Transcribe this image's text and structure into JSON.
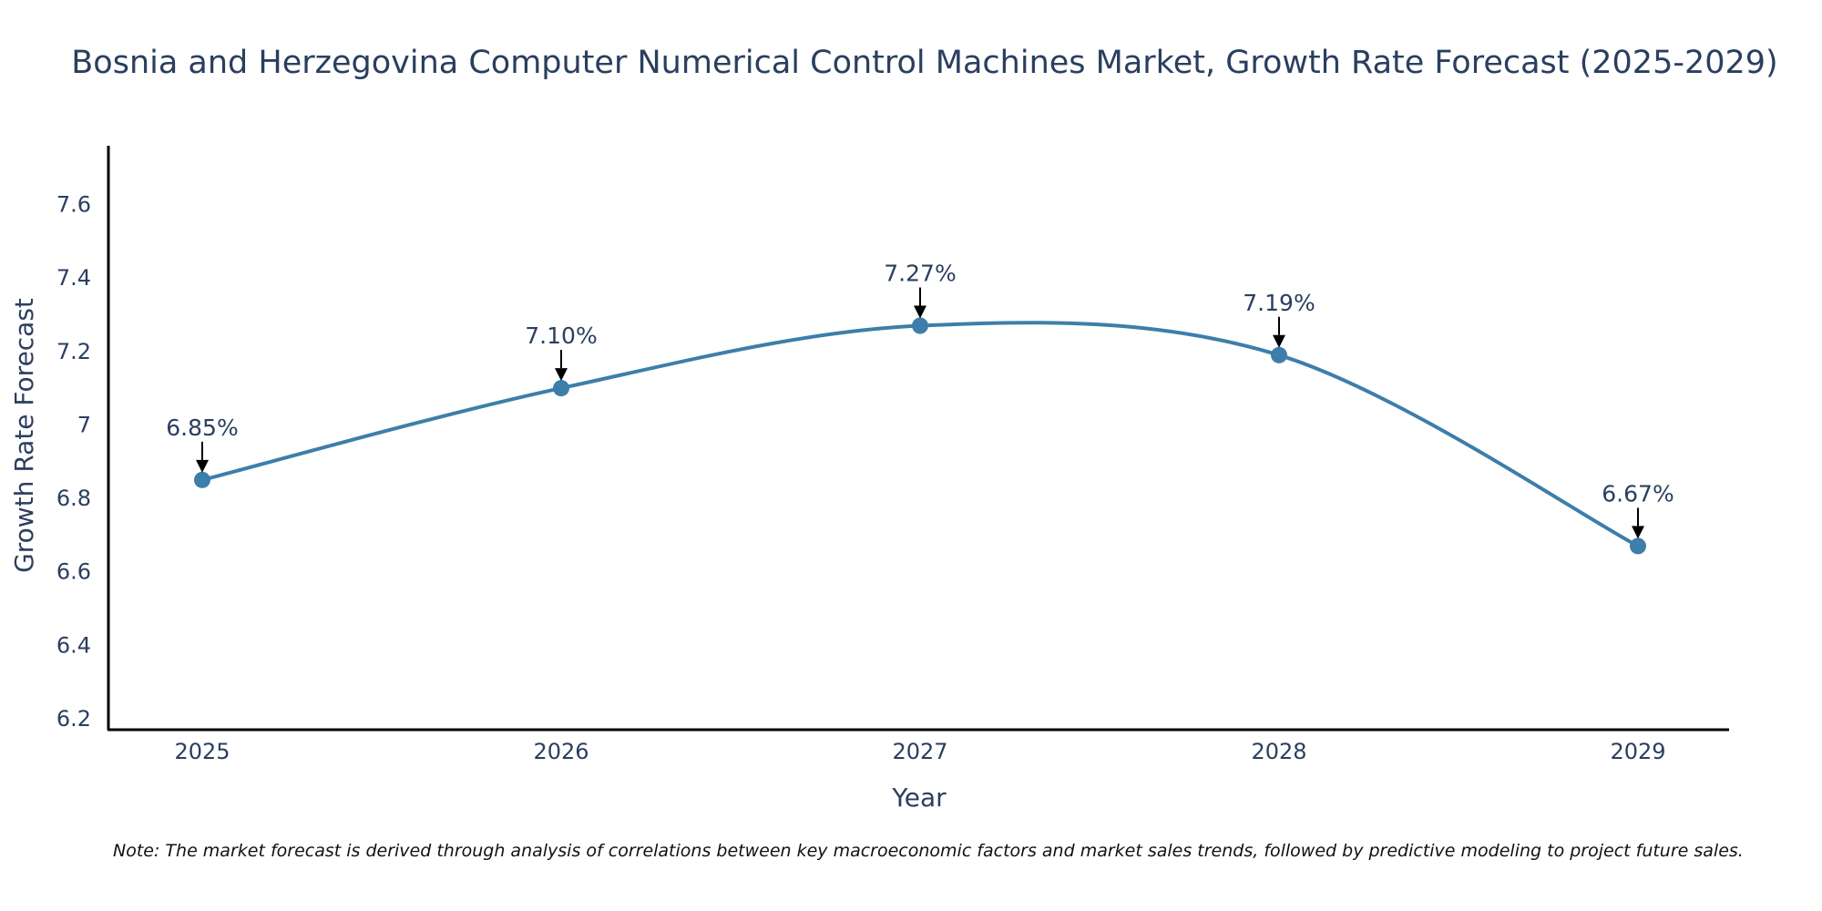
{
  "chart_data": {
    "type": "line",
    "title": "Bosnia and Herzegovina Computer Numerical Control Machines Market, Growth Rate Forecast (2025-2029)",
    "xlabel": "Year",
    "ylabel": "Growth Rate Forecast",
    "categories": [
      "2025",
      "2026",
      "2027",
      "2028",
      "2029"
    ],
    "series": [
      {
        "name": "Growth Rate Forecast",
        "values": [
          6.85,
          7.1,
          7.27,
          7.19,
          6.67
        ]
      }
    ],
    "annotations": [
      "6.85%",
      "7.10%",
      "7.27%",
      "7.19%",
      "6.67%"
    ],
    "yticks": [
      6.2,
      6.4,
      6.6,
      6.8,
      7,
      7.2,
      7.4,
      7.6
    ],
    "ytick_labels": [
      "6.2",
      "6.4",
      "6.6",
      "6.8",
      "7",
      "7.2",
      "7.4",
      "7.6"
    ],
    "ylim": [
      6.17,
      7.76
    ],
    "grid": false,
    "line_color": "#3d7eaa",
    "note": "Note: The market forecast is derived through analysis of correlations between key macroeconomic factors and market sales trends, followed by predictive modeling to project future sales."
  }
}
